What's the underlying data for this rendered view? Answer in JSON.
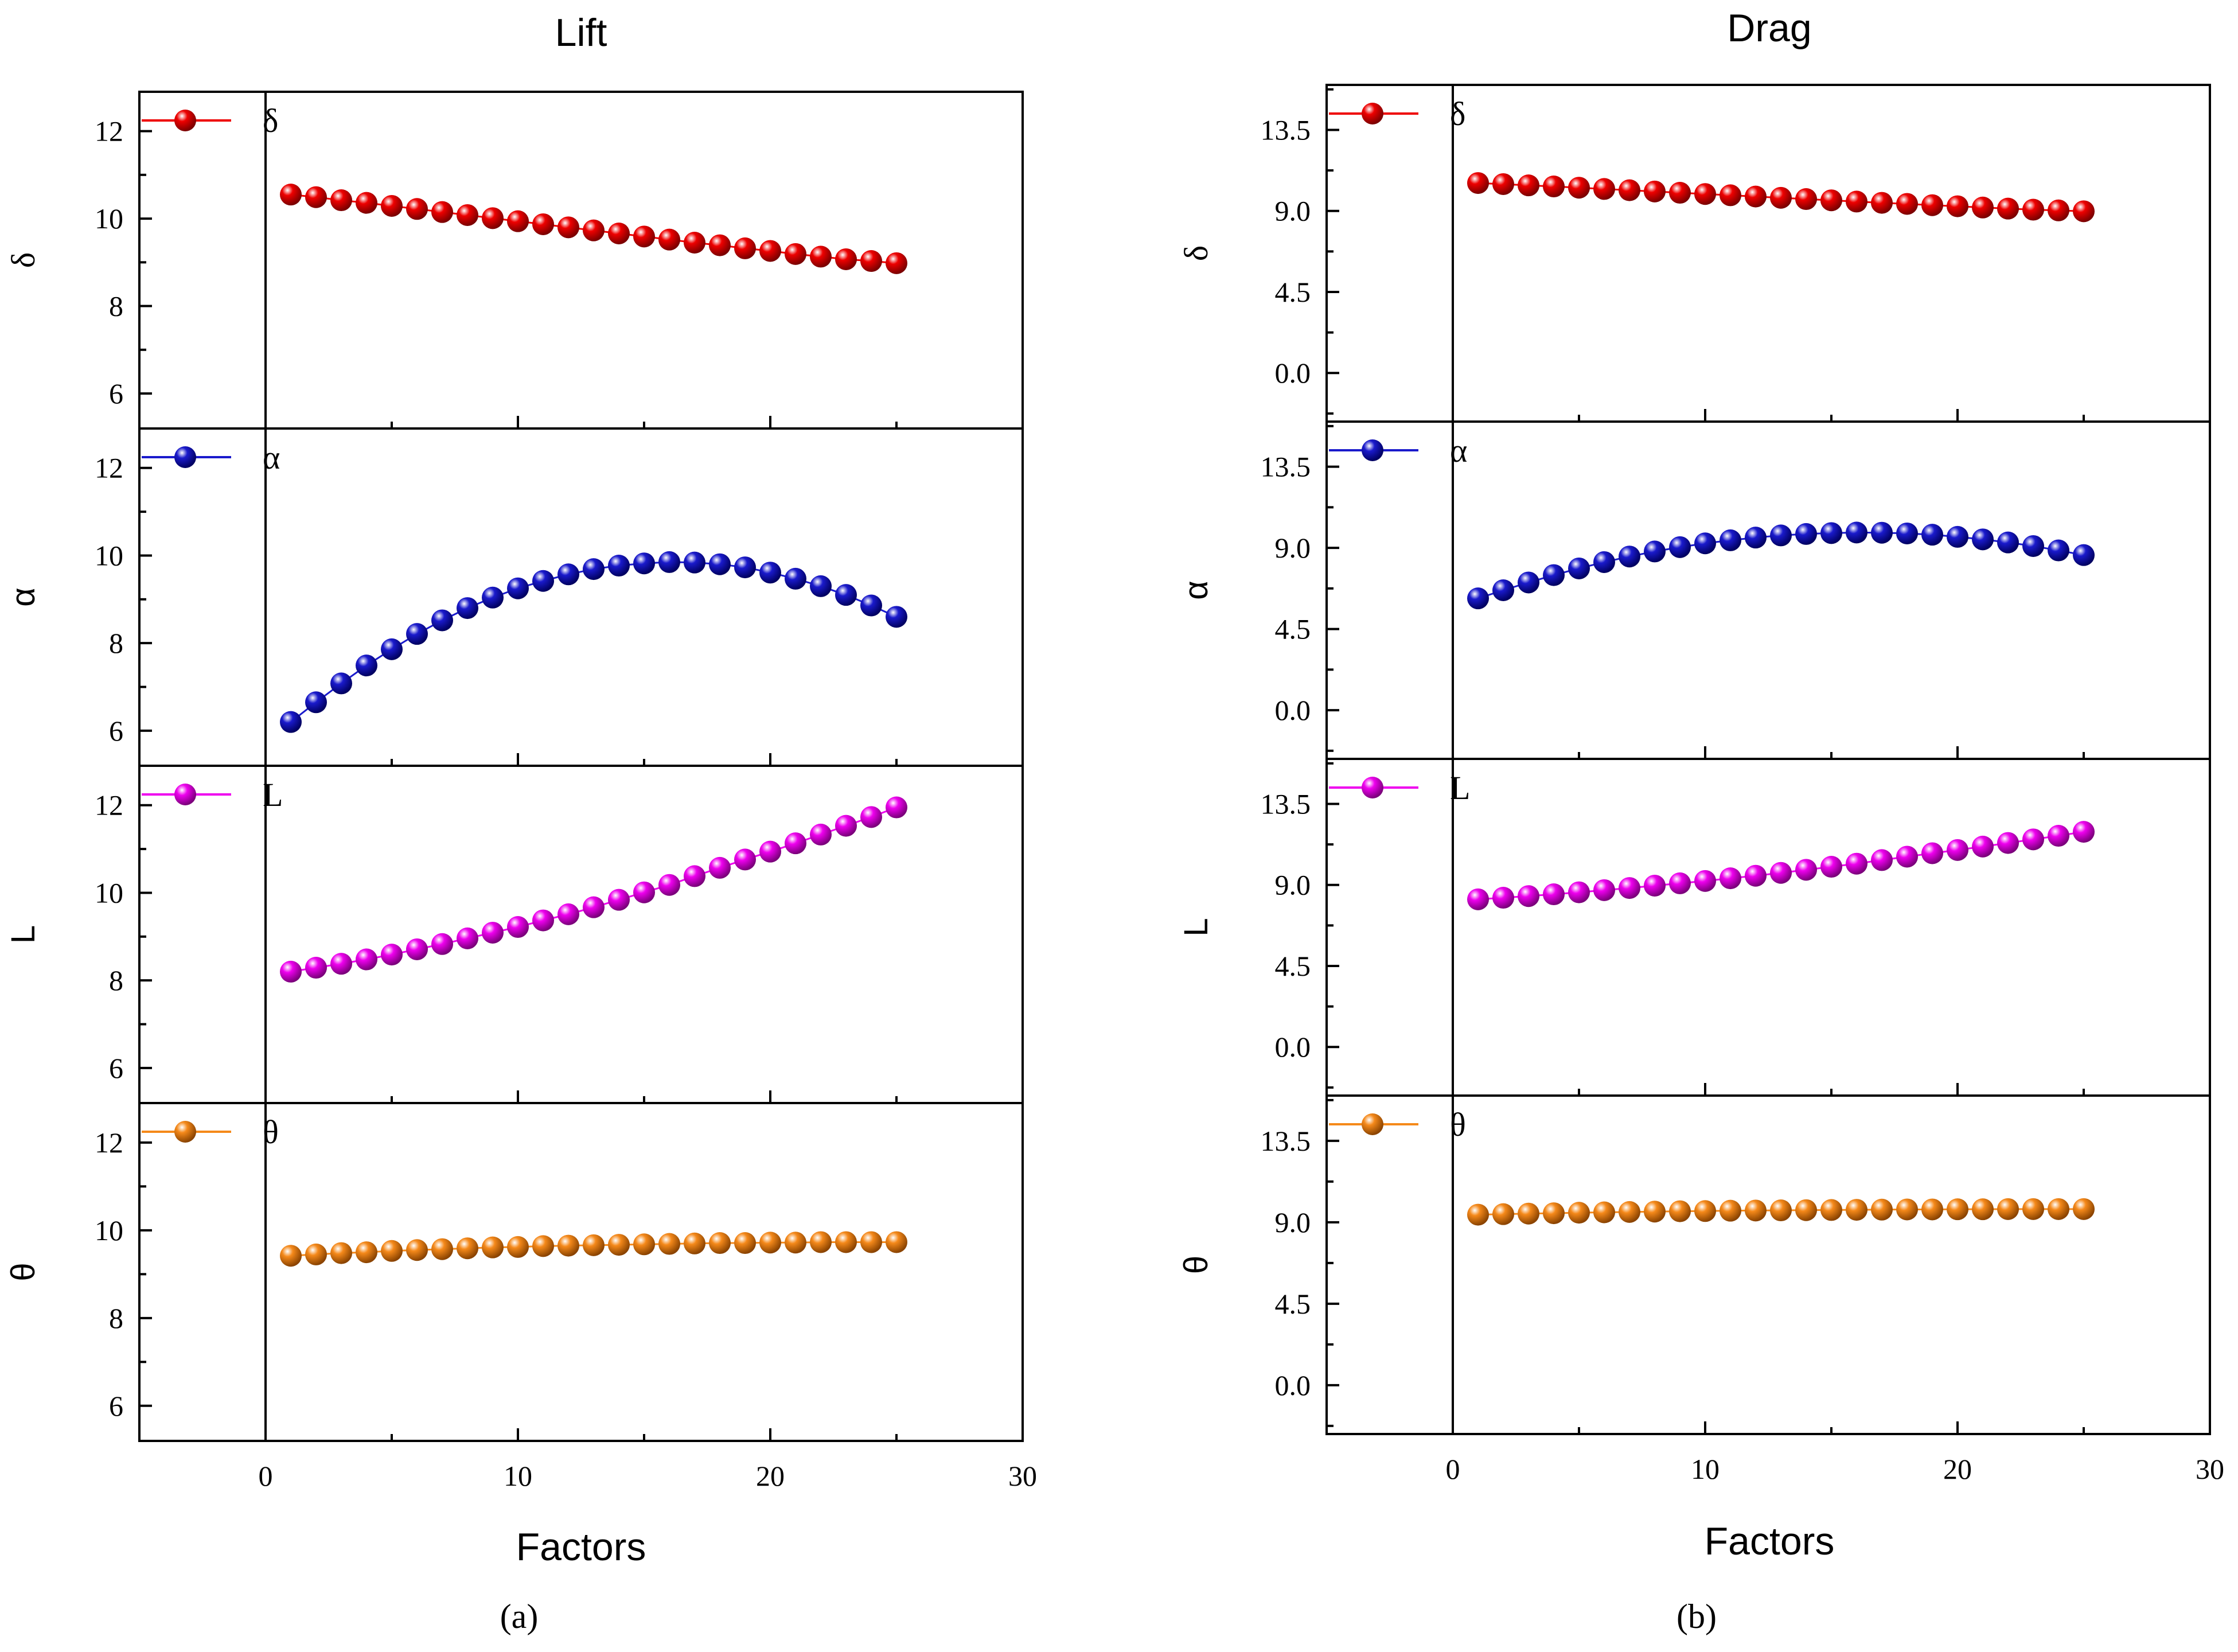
{
  "chart_data": [
    {
      "type": "scatter",
      "id": "a",
      "title": "Lift",
      "caption": "(a)",
      "xlabel": "Factors",
      "xlim": [
        -5,
        30
      ],
      "xticks": [
        0,
        10,
        20,
        30
      ],
      "x": [
        1,
        2,
        3,
        4,
        5,
        6,
        7,
        8,
        9,
        10,
        11,
        12,
        13,
        14,
        15,
        16,
        17,
        18,
        19,
        20,
        21,
        22,
        23,
        24,
        25
      ],
      "subplots": [
        {
          "name": "δ",
          "ylabel": "δ",
          "legend": "δ",
          "color": "#ee0000",
          "ylim": [
            5.2,
            12.9
          ],
          "yticks": [
            6,
            8,
            10,
            12
          ],
          "values": [
            10.55,
            10.49,
            10.42,
            10.36,
            10.29,
            10.22,
            10.15,
            10.08,
            10.01,
            9.94,
            9.87,
            9.8,
            9.73,
            9.66,
            9.59,
            9.52,
            9.45,
            9.39,
            9.32,
            9.26,
            9.19,
            9.13,
            9.07,
            9.03,
            8.98
          ]
        },
        {
          "name": "α",
          "ylabel": "α",
          "legend": "α",
          "color": "#1a1acc",
          "ylim": [
            5.2,
            12.9
          ],
          "yticks": [
            6,
            8,
            10,
            12
          ],
          "values": [
            6.2,
            6.65,
            7.08,
            7.49,
            7.86,
            8.21,
            8.52,
            8.8,
            9.04,
            9.25,
            9.42,
            9.57,
            9.69,
            9.77,
            9.82,
            9.85,
            9.84,
            9.8,
            9.73,
            9.61,
            9.47,
            9.3,
            9.1,
            8.86,
            8.6
          ]
        },
        {
          "name": "L",
          "ylabel": "L",
          "legend": "L",
          "color": "#ee00ee",
          "ylim": [
            5.2,
            12.9
          ],
          "yticks": [
            6,
            8,
            10,
            12
          ],
          "values": [
            8.2,
            8.29,
            8.38,
            8.48,
            8.59,
            8.71,
            8.83,
            8.96,
            9.09,
            9.22,
            9.37,
            9.51,
            9.67,
            9.84,
            10.01,
            10.18,
            10.38,
            10.57,
            10.76,
            10.94,
            11.13,
            11.33,
            11.53,
            11.73,
            11.95
          ]
        },
        {
          "name": "θ",
          "ylabel": "θ",
          "legend": "θ",
          "color": "#f5891a",
          "ylim": [
            5.2,
            12.9
          ],
          "yticks": [
            6,
            8,
            10,
            12
          ],
          "values": [
            9.42,
            9.45,
            9.48,
            9.5,
            9.53,
            9.55,
            9.57,
            9.59,
            9.61,
            9.62,
            9.64,
            9.65,
            9.66,
            9.67,
            9.68,
            9.69,
            9.7,
            9.71,
            9.71,
            9.72,
            9.72,
            9.73,
            9.73,
            9.73,
            9.73
          ]
        }
      ]
    },
    {
      "type": "scatter",
      "id": "b",
      "title": "Drag",
      "caption": "(b)",
      "xlabel": "Factors",
      "xlim": [
        -5,
        30
      ],
      "xticks": [
        0,
        10,
        20,
        30
      ],
      "x": [
        1,
        2,
        3,
        4,
        5,
        6,
        7,
        8,
        9,
        10,
        11,
        12,
        13,
        14,
        15,
        16,
        17,
        18,
        19,
        20,
        21,
        22,
        23,
        24,
        25
      ],
      "subplots": [
        {
          "name": "δ",
          "ylabel": "δ",
          "legend": "δ",
          "color": "#ee0000",
          "ylim": [
            -2.7,
            16.0
          ],
          "yticks": [
            0.0,
            4.5,
            9.0,
            13.5
          ],
          "ytick_labels": [
            "0.0",
            "4.5",
            "9.0",
            "13.5"
          ],
          "values": [
            10.55,
            10.49,
            10.42,
            10.36,
            10.29,
            10.22,
            10.15,
            10.08,
            10.01,
            9.94,
            9.87,
            9.8,
            9.73,
            9.66,
            9.59,
            9.52,
            9.45,
            9.39,
            9.32,
            9.26,
            9.19,
            9.13,
            9.07,
            9.03,
            8.98
          ]
        },
        {
          "name": "α",
          "ylabel": "α",
          "legend": "α",
          "color": "#1a1acc",
          "ylim": [
            -2.7,
            16.0
          ],
          "yticks": [
            0.0,
            4.5,
            9.0,
            13.5
          ],
          "ytick_labels": [
            "0.0",
            "4.5",
            "9.0",
            "13.5"
          ],
          "values": [
            6.2,
            6.65,
            7.08,
            7.49,
            7.86,
            8.21,
            8.52,
            8.8,
            9.04,
            9.25,
            9.42,
            9.57,
            9.69,
            9.77,
            9.82,
            9.85,
            9.84,
            9.8,
            9.73,
            9.61,
            9.47,
            9.3,
            9.1,
            8.86,
            8.6
          ]
        },
        {
          "name": "L",
          "ylabel": "L",
          "legend": "L",
          "color": "#ee00ee",
          "ylim": [
            -2.7,
            16.0
          ],
          "yticks": [
            0.0,
            4.5,
            9.0,
            13.5
          ],
          "ytick_labels": [
            "0.0",
            "4.5",
            "9.0",
            "13.5"
          ],
          "values": [
            8.2,
            8.29,
            8.38,
            8.48,
            8.59,
            8.71,
            8.83,
            8.96,
            9.09,
            9.22,
            9.37,
            9.51,
            9.67,
            9.84,
            10.01,
            10.18,
            10.38,
            10.57,
            10.76,
            10.94,
            11.13,
            11.33,
            11.53,
            11.73,
            11.95
          ]
        },
        {
          "name": "θ",
          "ylabel": "θ",
          "legend": "θ",
          "color": "#f5891a",
          "ylim": [
            -2.7,
            16.0
          ],
          "yticks": [
            0.0,
            4.5,
            9.0,
            13.5
          ],
          "ytick_labels": [
            "0.0",
            "4.5",
            "9.0",
            "13.5"
          ],
          "values": [
            9.42,
            9.45,
            9.48,
            9.5,
            9.53,
            9.55,
            9.57,
            9.59,
            9.61,
            9.62,
            9.64,
            9.65,
            9.66,
            9.67,
            9.68,
            9.69,
            9.7,
            9.71,
            9.71,
            9.72,
            9.72,
            9.73,
            9.73,
            9.73,
            9.73
          ]
        }
      ]
    }
  ]
}
